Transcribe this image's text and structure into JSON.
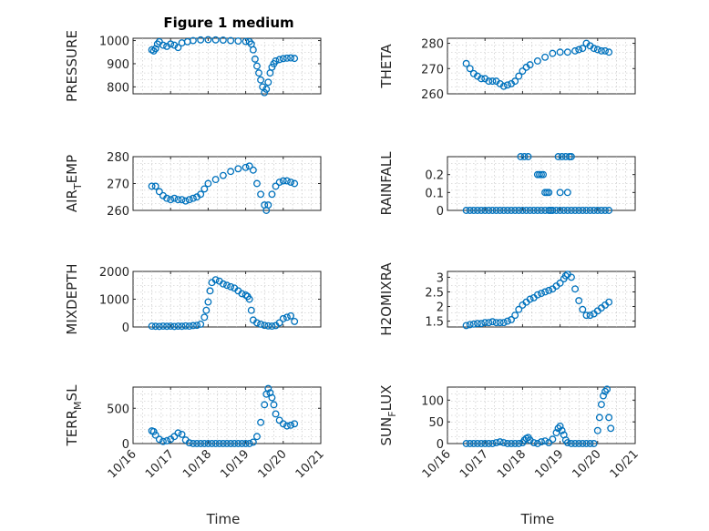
{
  "figure": {
    "title": "Figure 1 medium"
  },
  "chart_data": [
    {
      "type": "scatter",
      "panel": 0,
      "ylabel": "PRESSURE",
      "xlabel": "",
      "xlim": [
        0,
        5
      ],
      "ylim": [
        770,
        1010
      ],
      "yticks": [
        800,
        900,
        1000
      ],
      "ytick_labels": [
        "800",
        "900",
        "1000"
      ],
      "xticks": [
        0,
        1,
        2,
        3,
        4,
        5
      ],
      "xtick_labels": [],
      "grid": true,
      "legend": "none",
      "x": [
        0.5,
        0.55,
        0.6,
        0.65,
        0.7,
        0.8,
        0.9,
        1.0,
        1.1,
        1.2,
        1.3,
        1.45,
        1.6,
        1.8,
        2.0,
        2.2,
        2.4,
        2.6,
        2.8,
        3.0,
        3.1,
        3.15,
        3.2,
        3.25,
        3.3,
        3.35,
        3.4,
        3.45,
        3.5,
        3.55,
        3.6,
        3.65,
        3.7,
        3.75,
        3.8,
        3.9,
        4.0,
        4.1,
        4.2,
        4.3
      ],
      "y": [
        960,
        955,
        965,
        985,
        995,
        980,
        975,
        985,
        980,
        970,
        990,
        995,
        1000,
        1003,
        1004,
        1003,
        1002,
        1000,
        998,
        996,
        995,
        985,
        960,
        920,
        890,
        860,
        830,
        800,
        775,
        790,
        820,
        860,
        885,
        900,
        912,
        918,
        922,
        924,
        925,
        923
      ]
    },
    {
      "type": "scatter",
      "panel": 1,
      "ylabel": "THETA",
      "xlabel": "",
      "xlim": [
        0,
        5
      ],
      "ylim": [
        260,
        282
      ],
      "yticks": [
        260,
        270,
        280
      ],
      "ytick_labels": [
        "260",
        "270",
        "280"
      ],
      "xticks": [
        0,
        1,
        2,
        3,
        4,
        5
      ],
      "xtick_labels": [],
      "grid": true,
      "legend": "none",
      "x": [
        0.5,
        0.6,
        0.7,
        0.8,
        0.9,
        1.0,
        1.1,
        1.2,
        1.3,
        1.4,
        1.5,
        1.6,
        1.7,
        1.8,
        1.9,
        2.0,
        2.1,
        2.2,
        2.4,
        2.6,
        2.8,
        3.0,
        3.2,
        3.4,
        3.5,
        3.6,
        3.7,
        3.8,
        3.9,
        4.0,
        4.1,
        4.2,
        4.3
      ],
      "y": [
        272,
        270,
        268,
        267,
        266,
        266,
        265,
        265,
        265,
        264,
        263,
        263.5,
        264,
        265,
        267,
        269,
        270.5,
        271.5,
        273,
        274.5,
        276,
        276.5,
        276.5,
        277,
        277.5,
        278,
        280,
        279,
        278,
        277.5,
        277,
        277,
        276.5
      ]
    },
    {
      "type": "scatter",
      "panel": 2,
      "ylabel": "AIR_TEMP",
      "ylabel_parts": [
        "AIR",
        "T",
        "EMP"
      ],
      "xlabel": "",
      "xlim": [
        0,
        5
      ],
      "ylim": [
        260,
        280
      ],
      "yticks": [
        260,
        270,
        280
      ],
      "ytick_labels": [
        "260",
        "270",
        "280"
      ],
      "xticks": [
        0,
        1,
        2,
        3,
        4,
        5
      ],
      "xtick_labels": [],
      "grid": true,
      "legend": "none",
      "x": [
        0.5,
        0.6,
        0.7,
        0.8,
        0.9,
        1.0,
        1.1,
        1.2,
        1.3,
        1.4,
        1.5,
        1.6,
        1.7,
        1.8,
        1.9,
        2.0,
        2.2,
        2.4,
        2.6,
        2.8,
        3.0,
        3.1,
        3.2,
        3.3,
        3.4,
        3.5,
        3.55,
        3.6,
        3.7,
        3.8,
        3.9,
        4.0,
        4.1,
        4.2,
        4.3
      ],
      "y": [
        269,
        269,
        267,
        265.5,
        264.5,
        264,
        264.5,
        264,
        264,
        263.5,
        264,
        264.5,
        265,
        266,
        268,
        270,
        271.5,
        273,
        274.5,
        275.5,
        276,
        276.5,
        275,
        270,
        266,
        262,
        260,
        262,
        266,
        269,
        270.5,
        271,
        271,
        270.5,
        270
      ]
    },
    {
      "type": "scatter",
      "panel": 3,
      "ylabel": "RAINFALL",
      "xlabel": "",
      "xlim": [
        0,
        5
      ],
      "ylim": [
        0,
        0.3
      ],
      "yticks": [
        0,
        0.1,
        0.2
      ],
      "ytick_labels": [
        "0",
        "0.1",
        "0.2"
      ],
      "xticks": [
        0,
        1,
        2,
        3,
        4,
        5
      ],
      "xtick_labels": [],
      "grid": true,
      "legend": "none",
      "x": [
        0.5,
        0.6,
        0.7,
        0.8,
        0.9,
        1.0,
        1.1,
        1.2,
        1.3,
        1.4,
        1.5,
        1.6,
        1.7,
        1.8,
        1.9,
        2.0,
        2.1,
        2.2,
        2.3,
        2.4,
        2.5,
        2.6,
        2.7,
        2.8,
        2.9,
        3.0,
        3.1,
        3.2,
        3.3,
        3.4,
        3.5,
        3.6,
        3.7,
        3.8,
        3.9,
        4.0,
        4.1,
        4.2,
        4.3,
        1.95,
        2.05,
        2.15,
        2.4,
        2.45,
        2.5,
        2.6,
        2.65,
        2.7,
        2.75,
        2.95,
        3.05,
        3.15,
        3.25,
        3.3,
        2.55,
        3.0,
        3.2
      ],
      "y": [
        0,
        0,
        0,
        0,
        0,
        0,
        0,
        0,
        0,
        0,
        0,
        0,
        0,
        0,
        0,
        0,
        0,
        0,
        0,
        0,
        0,
        0,
        0,
        0,
        0,
        0,
        0,
        0,
        0,
        0,
        0,
        0,
        0,
        0,
        0,
        0,
        0,
        0,
        0,
        0.3,
        0.3,
        0.3,
        0.2,
        0.2,
        0.2,
        0.1,
        0.1,
        0.1,
        0,
        0.3,
        0.3,
        0.3,
        0.3,
        0.3,
        0.2,
        0.1,
        0.1
      ]
    },
    {
      "type": "scatter",
      "panel": 4,
      "ylabel": "MIXDEPTH",
      "xlabel": "",
      "xlim": [
        0,
        5
      ],
      "ylim": [
        0,
        2000
      ],
      "yticks": [
        0,
        1000,
        2000
      ],
      "ytick_labels": [
        "0",
        "1000",
        "2000"
      ],
      "xticks": [
        0,
        1,
        2,
        3,
        4,
        5
      ],
      "xtick_labels": [],
      "grid": true,
      "legend": "none",
      "x": [
        0.5,
        0.6,
        0.7,
        0.8,
        0.9,
        1.0,
        1.1,
        1.2,
        1.3,
        1.4,
        1.5,
        1.6,
        1.7,
        1.8,
        1.9,
        1.95,
        2.0,
        2.05,
        2.1,
        2.2,
        2.3,
        2.4,
        2.5,
        2.6,
        2.7,
        2.8,
        2.9,
        3.0,
        3.05,
        3.1,
        3.15,
        3.2,
        3.3,
        3.4,
        3.5,
        3.6,
        3.7,
        3.8,
        3.9,
        4.0,
        4.1,
        4.2,
        4.3
      ],
      "y": [
        30,
        25,
        20,
        30,
        25,
        30,
        20,
        30,
        25,
        40,
        30,
        50,
        60,
        100,
        350,
        600,
        900,
        1300,
        1600,
        1700,
        1650,
        1550,
        1500,
        1450,
        1400,
        1300,
        1200,
        1150,
        1100,
        1000,
        600,
        250,
        150,
        100,
        60,
        40,
        30,
        50,
        150,
        300,
        350,
        400,
        200
      ]
    },
    {
      "type": "scatter",
      "panel": 5,
      "ylabel": "H2OMIXRA",
      "xlabel": "",
      "xlim": [
        0,
        5
      ],
      "ylim": [
        1.3,
        3.2
      ],
      "yticks": [
        1.5,
        2,
        2.5,
        3
      ],
      "ytick_labels": [
        "1.5",
        "2",
        "2.5",
        "3"
      ],
      "xticks": [
        0,
        1,
        2,
        3,
        4,
        5
      ],
      "xtick_labels": [],
      "grid": true,
      "legend": "none",
      "x": [
        0.5,
        0.6,
        0.7,
        0.8,
        0.9,
        1.0,
        1.1,
        1.2,
        1.3,
        1.4,
        1.5,
        1.6,
        1.7,
        1.8,
        1.9,
        2.0,
        2.1,
        2.2,
        2.3,
        2.4,
        2.5,
        2.6,
        2.7,
        2.8,
        2.9,
        3.0,
        3.1,
        3.15,
        3.2,
        3.3,
        3.4,
        3.5,
        3.6,
        3.7,
        3.8,
        3.9,
        4.0,
        4.1,
        4.2,
        4.3
      ],
      "y": [
        1.35,
        1.38,
        1.4,
        1.42,
        1.42,
        1.45,
        1.45,
        1.48,
        1.45,
        1.45,
        1.45,
        1.5,
        1.55,
        1.7,
        1.9,
        2.05,
        2.15,
        2.25,
        2.3,
        2.4,
        2.45,
        2.5,
        2.55,
        2.6,
        2.7,
        2.8,
        2.95,
        3.05,
        3.1,
        3.0,
        2.6,
        2.2,
        1.9,
        1.7,
        1.7,
        1.75,
        1.85,
        1.95,
        2.05,
        2.15
      ]
    },
    {
      "type": "scatter",
      "panel": 6,
      "ylabel": "TERR_MSL",
      "ylabel_parts": [
        "TERR",
        "M",
        "SL"
      ],
      "xlabel": "Time",
      "xlim": [
        0,
        5
      ],
      "ylim": [
        0,
        800
      ],
      "yticks": [
        0,
        500
      ],
      "ytick_labels": [
        "0",
        "500"
      ],
      "xticks": [
        0,
        1,
        2,
        3,
        4,
        5
      ],
      "xtick_labels": [
        "10/16",
        "10/17",
        "10/18",
        "10/19",
        "10/20",
        "10/21"
      ],
      "grid": true,
      "legend": "none",
      "x": [
        0.5,
        0.55,
        0.6,
        0.7,
        0.8,
        0.9,
        1.0,
        1.1,
        1.2,
        1.3,
        1.4,
        1.5,
        1.6,
        1.7,
        1.8,
        1.9,
        2.0,
        2.1,
        2.2,
        2.3,
        2.4,
        2.5,
        2.6,
        2.7,
        2.8,
        2.9,
        3.0,
        3.1,
        3.2,
        3.3,
        3.4,
        3.5,
        3.55,
        3.6,
        3.65,
        3.7,
        3.75,
        3.8,
        3.9,
        4.0,
        4.1,
        4.2,
        4.3
      ],
      "y": [
        180,
        170,
        120,
        60,
        30,
        40,
        60,
        100,
        150,
        130,
        50,
        10,
        0,
        0,
        0,
        0,
        0,
        0,
        0,
        0,
        0,
        0,
        0,
        0,
        0,
        0,
        0,
        0,
        20,
        100,
        300,
        550,
        700,
        780,
        720,
        650,
        550,
        420,
        330,
        280,
        250,
        260,
        280
      ]
    },
    {
      "type": "scatter",
      "panel": 7,
      "ylabel": "SUN_FLUX",
      "ylabel_parts": [
        "SUN",
        "F",
        "LUX"
      ],
      "xlabel": "Time",
      "xlim": [
        0,
        5
      ],
      "ylim": [
        0,
        130
      ],
      "yticks": [
        0,
        50,
        100
      ],
      "ytick_labels": [
        "0",
        "50",
        "100"
      ],
      "xticks": [
        0,
        1,
        2,
        3,
        4,
        5
      ],
      "xtick_labels": [
        "10/16",
        "10/17",
        "10/18",
        "10/19",
        "10/20",
        "10/21"
      ],
      "grid": true,
      "legend": "none",
      "x": [
        0.5,
        0.6,
        0.7,
        0.8,
        0.9,
        1.0,
        1.1,
        1.2,
        1.3,
        1.4,
        1.5,
        1.6,
        1.7,
        1.8,
        1.9,
        2.0,
        2.05,
        2.1,
        2.15,
        2.2,
        2.3,
        2.4,
        2.5,
        2.6,
        2.7,
        2.8,
        2.9,
        2.95,
        3.0,
        3.05,
        3.1,
        3.15,
        3.2,
        3.3,
        3.4,
        3.5,
        3.6,
        3.7,
        3.8,
        3.9,
        4.0,
        4.05,
        4.1,
        4.15,
        4.2,
        4.25,
        4.3,
        4.35
      ],
      "y": [
        0,
        0,
        0,
        0,
        0,
        0,
        0,
        0,
        2,
        4,
        2,
        0,
        0,
        0,
        0,
        2,
        8,
        12,
        14,
        8,
        2,
        0,
        4,
        6,
        2,
        10,
        25,
        35,
        40,
        30,
        20,
        8,
        2,
        0,
        0,
        0,
        0,
        0,
        0,
        0,
        30,
        60,
        90,
        110,
        120,
        125,
        60,
        35
      ]
    }
  ]
}
